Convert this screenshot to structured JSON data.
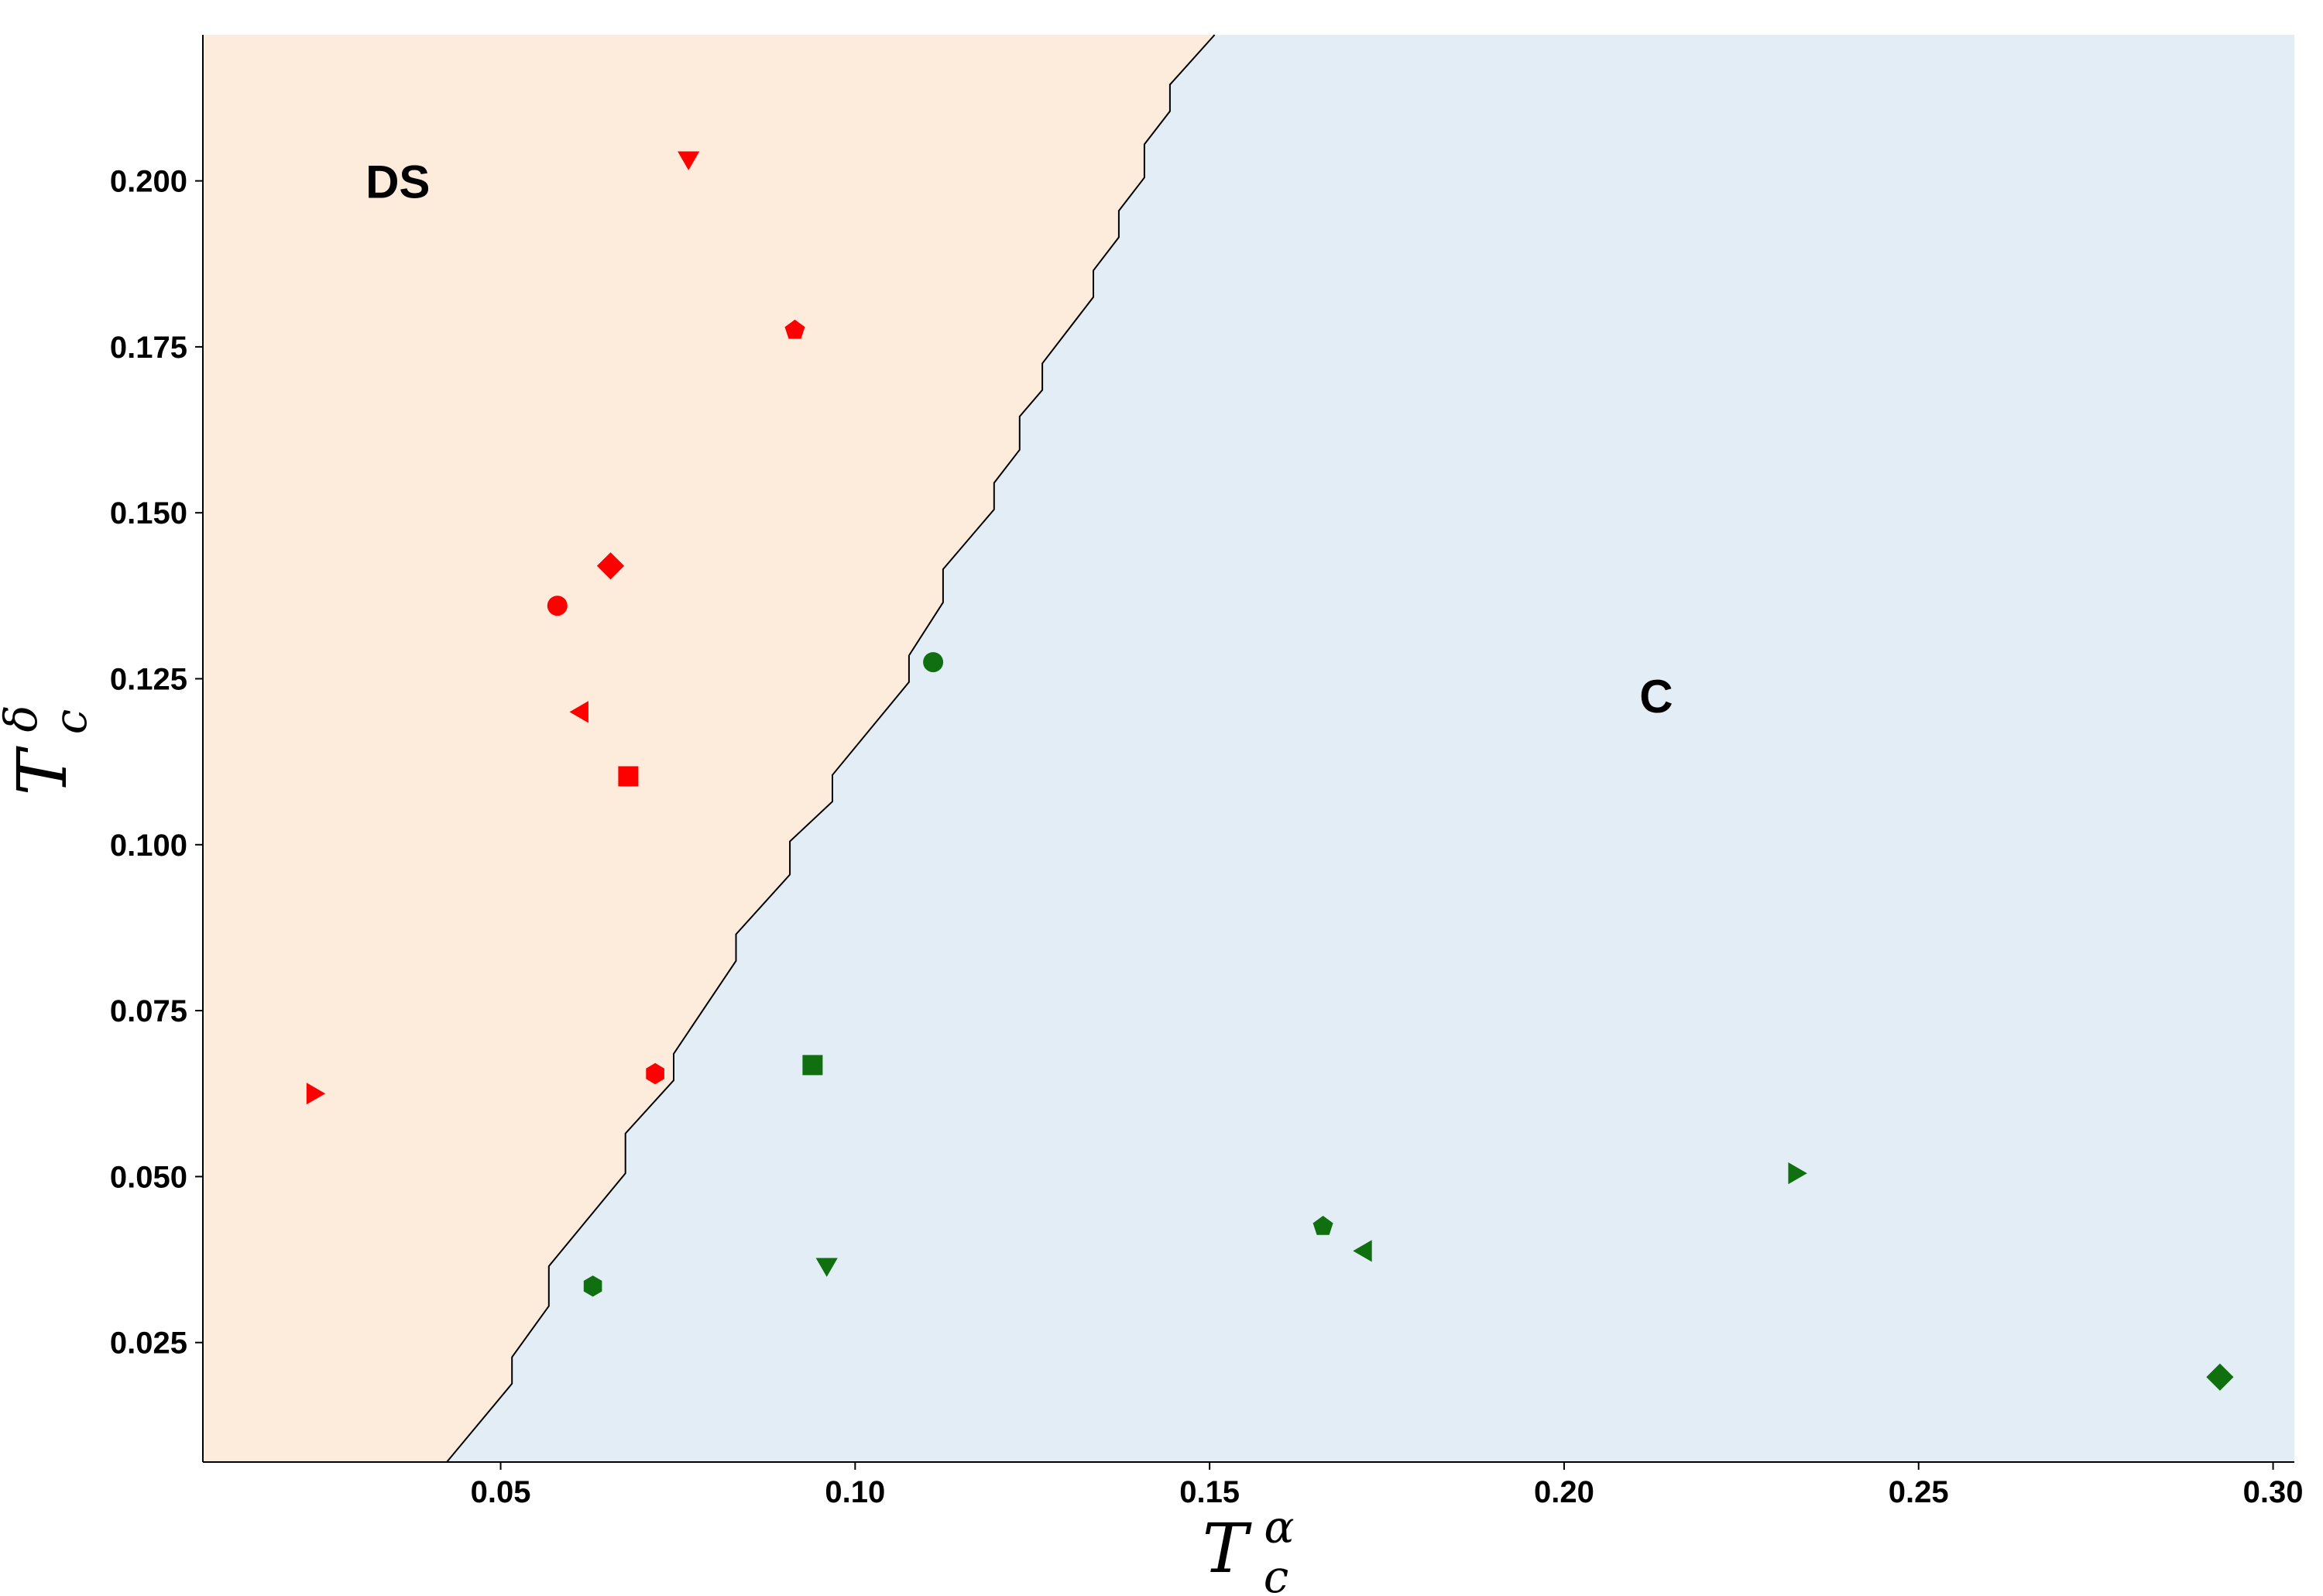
{
  "chart_data": {
    "type": "scatter",
    "title": "",
    "xlabel": "T_c^α",
    "ylabel": "T_c^δ",
    "xlabel_parts": {
      "base": "T",
      "sub": "c",
      "sup": "α"
    },
    "ylabel_parts": {
      "base": "T",
      "sub": "c",
      "sup": "δ"
    },
    "xlim": [
      0.008,
      0.303
    ],
    "ylim": [
      0.007,
      0.222
    ],
    "x_ticks": [
      "0.05",
      "0.10",
      "0.15",
      "0.20",
      "0.25",
      "0.30"
    ],
    "y_ticks": [
      "0.025",
      "0.050",
      "0.075",
      "0.100",
      "0.125",
      "0.150",
      "0.175",
      "0.200"
    ],
    "grid": false,
    "regions": [
      {
        "label": "DS",
        "color": "#fdebdc",
        "label_at": [
          0.0355,
          0.2
        ]
      },
      {
        "label": "C",
        "color": "#e2edf6",
        "label_at": [
          0.213,
          0.1225
        ]
      }
    ],
    "boundary_color": "#000000",
    "boundary": [
      [
        0.0424,
        0.007
      ],
      [
        0.0516,
        0.0188
      ],
      [
        0.0516,
        0.0228
      ],
      [
        0.0568,
        0.0305
      ],
      [
        0.0568,
        0.0365
      ],
      [
        0.0676,
        0.0505
      ],
      [
        0.0676,
        0.0565
      ],
      [
        0.0744,
        0.0645
      ],
      [
        0.0744,
        0.0685
      ],
      [
        0.0832,
        0.0825
      ],
      [
        0.0832,
        0.0865
      ],
      [
        0.0908,
        0.0955
      ],
      [
        0.0908,
        0.1005
      ],
      [
        0.0968,
        0.1065
      ],
      [
        0.0968,
        0.1105
      ],
      [
        0.1076,
        0.1245
      ],
      [
        0.1076,
        0.1285
      ],
      [
        0.1124,
        0.1365
      ],
      [
        0.1124,
        0.1415
      ],
      [
        0.1196,
        0.1505
      ],
      [
        0.1196,
        0.1545
      ],
      [
        0.1232,
        0.1595
      ],
      [
        0.1232,
        0.1645
      ],
      [
        0.1264,
        0.1685
      ],
      [
        0.1264,
        0.1725
      ],
      [
        0.1336,
        0.1825
      ],
      [
        0.1336,
        0.1865
      ],
      [
        0.1372,
        0.1915
      ],
      [
        0.1372,
        0.1955
      ],
      [
        0.1408,
        0.2005
      ],
      [
        0.1408,
        0.2055
      ],
      [
        0.1444,
        0.2105
      ],
      [
        0.1444,
        0.2145
      ],
      [
        0.1507,
        0.222
      ]
    ],
    "series": [
      {
        "color": "#ff0000",
        "points": [
          {
            "x": 0.0765,
            "y": 0.2035,
            "marker": "triangle-down"
          },
          {
            "x": 0.0915,
            "y": 0.1775,
            "marker": "pentagon"
          },
          {
            "x": 0.0655,
            "y": 0.142,
            "marker": "diamond"
          },
          {
            "x": 0.058,
            "y": 0.136,
            "marker": "circle"
          },
          {
            "x": 0.0615,
            "y": 0.12,
            "marker": "triangle-left"
          },
          {
            "x": 0.068,
            "y": 0.1103,
            "marker": "square"
          },
          {
            "x": 0.0718,
            "y": 0.0655,
            "marker": "hexagon"
          },
          {
            "x": 0.0235,
            "y": 0.0625,
            "marker": "triangle-right"
          }
        ]
      },
      {
        "color": "#107010",
        "points": [
          {
            "x": 0.111,
            "y": 0.1275,
            "marker": "circle"
          },
          {
            "x": 0.094,
            "y": 0.0668,
            "marker": "square"
          },
          {
            "x": 0.096,
            "y": 0.0368,
            "marker": "triangle-down"
          },
          {
            "x": 0.063,
            "y": 0.0335,
            "marker": "hexagon"
          },
          {
            "x": 0.166,
            "y": 0.0425,
            "marker": "pentagon"
          },
          {
            "x": 0.172,
            "y": 0.0388,
            "marker": "triangle-left"
          },
          {
            "x": 0.2325,
            "y": 0.0505,
            "marker": "triangle-right"
          },
          {
            "x": 0.2925,
            "y": 0.0198,
            "marker": "diamond"
          }
        ]
      }
    ]
  }
}
